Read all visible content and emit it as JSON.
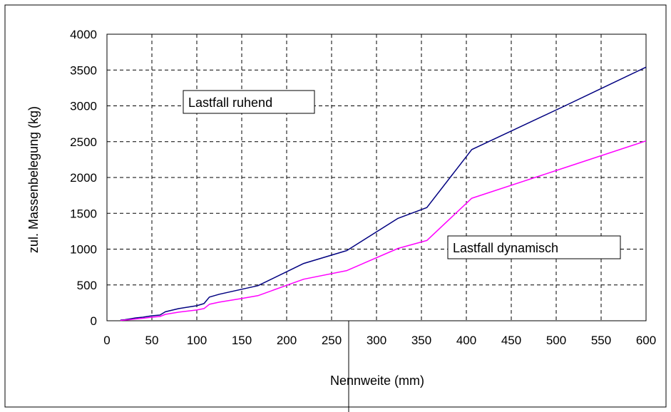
{
  "chart_data": {
    "type": "line",
    "title": "",
    "xlabel": "Nennweite (mm)",
    "ylabel": "zul. Massenbelegung (kg)",
    "xlim": [
      0,
      600
    ],
    "ylim": [
      0,
      4000
    ],
    "x_ticks": [
      0,
      50,
      100,
      150,
      200,
      250,
      300,
      350,
      400,
      450,
      500,
      550,
      600
    ],
    "y_ticks": [
      0,
      500,
      1000,
      1500,
      2000,
      2500,
      3000,
      3500,
      4000
    ],
    "grid": true,
    "legend": "none",
    "series": [
      {
        "name": "Lastfall ruhend",
        "color": "#000080",
        "x": [
          15,
          20,
          25,
          32,
          40,
          50,
          59,
          65,
          80,
          100,
          108,
          114,
          125,
          150,
          168,
          219,
          267,
          324,
          356,
          406,
          508,
          600
        ],
        "y": [
          10,
          15,
          25,
          40,
          50,
          70,
          80,
          125,
          170,
          210,
          240,
          330,
          370,
          440,
          490,
          800,
          980,
          1430,
          1580,
          2390,
          2990,
          3540
        ]
      },
      {
        "name": "Lastfall dynamisch",
        "color": "#ff00ff",
        "x": [
          15,
          20,
          25,
          32,
          40,
          50,
          59,
          65,
          80,
          100,
          108,
          114,
          125,
          150,
          168,
          219,
          267,
          324,
          356,
          406,
          508,
          600
        ],
        "y": [
          5,
          10,
          15,
          25,
          35,
          50,
          60,
          90,
          120,
          150,
          170,
          230,
          260,
          310,
          350,
          580,
          700,
          1010,
          1120,
          1710,
          2130,
          2510
        ]
      }
    ],
    "annotations": [
      {
        "text": "Lastfall ruhend",
        "series": 0
      },
      {
        "text": "Lastfall dynamisch",
        "series": 1
      }
    ]
  }
}
